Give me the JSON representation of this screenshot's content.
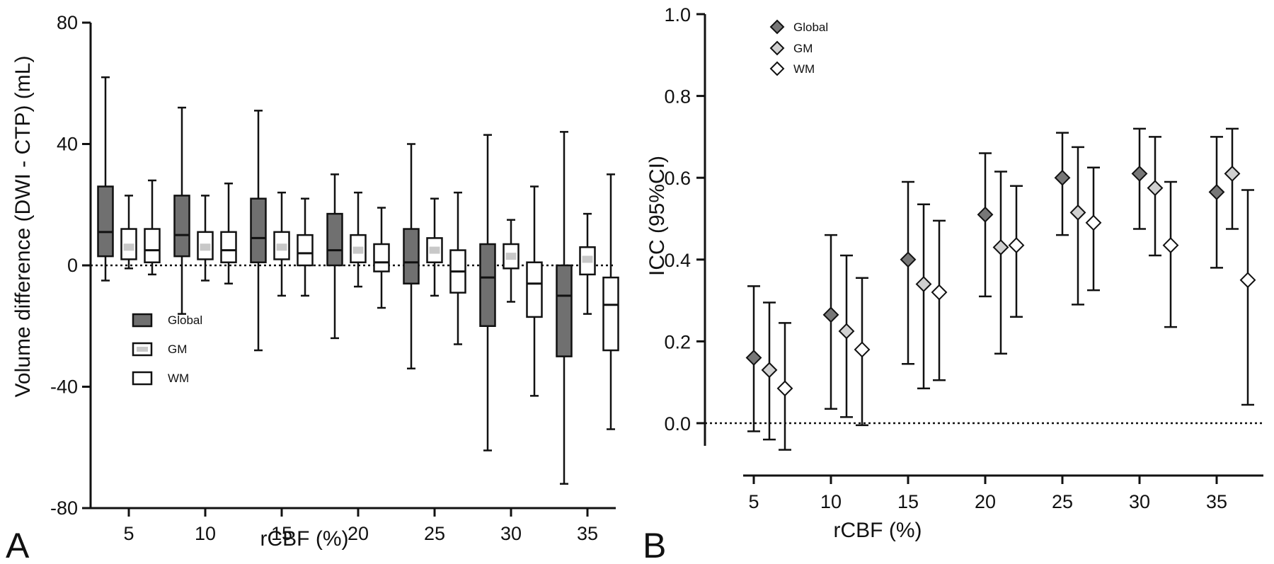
{
  "chart_data": [
    {
      "type": "boxplot",
      "panel_label": "A",
      "xlabel": "rCBF (%)",
      "ylabel": "Volume difference (DWI - CTP) (mL)",
      "ylim": [
        -80,
        80
      ],
      "yticks": [
        80,
        40,
        0,
        -40,
        -80
      ],
      "ytick_labels": [
        "80",
        "40",
        "0",
        "-40",
        "-80"
      ],
      "categories": [
        "5",
        "10",
        "15",
        "20",
        "25",
        "30",
        "35"
      ],
      "reference_line": 0,
      "legend_position": "bottom-left",
      "series": [
        {
          "name": "Global",
          "color": "#707070",
          "median_color": "#111111",
          "boxes": [
            {
              "min": -5,
              "q1": 3,
              "median": 11,
              "q3": 26,
              "max": 62
            },
            {
              "min": -16,
              "q1": 3,
              "median": 10,
              "q3": 23,
              "max": 52
            },
            {
              "min": -28,
              "q1": 1,
              "median": 9,
              "q3": 22,
              "max": 51
            },
            {
              "min": -24,
              "q1": 0,
              "median": 5,
              "q3": 17,
              "max": 30
            },
            {
              "min": -34,
              "q1": -6,
              "median": 1,
              "q3": 12,
              "max": 40
            },
            {
              "min": -61,
              "q1": -20,
              "median": -4,
              "q3": 7,
              "max": 43
            },
            {
              "min": -72,
              "q1": -30,
              "median": -10,
              "q3": 0,
              "max": 44
            }
          ]
        },
        {
          "name": "GM",
          "color": "#ffffff",
          "median_color": "#c8c8c8",
          "boxes": [
            {
              "min": -1,
              "q1": 2,
              "median": 6,
              "q3": 12,
              "max": 23
            },
            {
              "min": -5,
              "q1": 2,
              "median": 6,
              "q3": 11,
              "max": 23
            },
            {
              "min": -10,
              "q1": 2,
              "median": 6,
              "q3": 11,
              "max": 24
            },
            {
              "min": -7,
              "q1": 1,
              "median": 5,
              "q3": 10,
              "max": 24
            },
            {
              "min": -10,
              "q1": 1,
              "median": 5,
              "q3": 9,
              "max": 22
            },
            {
              "min": -12,
              "q1": -1,
              "median": 3,
              "q3": 7,
              "max": 15
            },
            {
              "min": -16,
              "q1": -3,
              "median": 2,
              "q3": 6,
              "max": 17
            }
          ]
        },
        {
          "name": "WM",
          "color": "#ffffff",
          "median_color": "#111111",
          "boxes": [
            {
              "min": -3,
              "q1": 1,
              "median": 5,
              "q3": 12,
              "max": 28
            },
            {
              "min": -6,
              "q1": 1,
              "median": 5,
              "q3": 11,
              "max": 27
            },
            {
              "min": -10,
              "q1": 0,
              "median": 4,
              "q3": 10,
              "max": 22
            },
            {
              "min": -14,
              "q1": -2,
              "median": 1,
              "q3": 7,
              "max": 19
            },
            {
              "min": -26,
              "q1": -9,
              "median": -2,
              "q3": 5,
              "max": 24
            },
            {
              "min": -43,
              "q1": -17,
              "median": -6,
              "q3": 1,
              "max": 26
            },
            {
              "min": -54,
              "q1": -28,
              "median": -13,
              "q3": -4,
              "max": 30
            }
          ]
        }
      ]
    },
    {
      "type": "scatter-errorbar",
      "panel_label": "B",
      "xlabel": "rCBF (%)",
      "ylabel": "ICC (95%CI)",
      "ylim": [
        -0.05,
        1.0
      ],
      "yticks": [
        1.0,
        0.8,
        0.6,
        0.4,
        0.2,
        0.0
      ],
      "ytick_labels": [
        "1.0",
        "0.8",
        "0.6",
        "0.4",
        "0.2",
        "0.0"
      ],
      "categories": [
        "5",
        "10",
        "15",
        "20",
        "25",
        "30",
        "35"
      ],
      "reference_line": 0,
      "legend_position": "top-left",
      "series": [
        {
          "name": "Global",
          "color": "#777777",
          "points": [
            {
              "y": 0.16,
              "lo": -0.02,
              "hi": 0.335
            },
            {
              "y": 0.265,
              "lo": 0.035,
              "hi": 0.46
            },
            {
              "y": 0.4,
              "lo": 0.145,
              "hi": 0.59
            },
            {
              "y": 0.51,
              "lo": 0.31,
              "hi": 0.66
            },
            {
              "y": 0.6,
              "lo": 0.46,
              "hi": 0.71
            },
            {
              "y": 0.61,
              "lo": 0.475,
              "hi": 0.72
            },
            {
              "y": 0.565,
              "lo": 0.38,
              "hi": 0.7
            }
          ]
        },
        {
          "name": "GM",
          "color": "#d0d0d0",
          "points": [
            {
              "y": 0.13,
              "lo": -0.04,
              "hi": 0.295
            },
            {
              "y": 0.225,
              "lo": 0.015,
              "hi": 0.41
            },
            {
              "y": 0.34,
              "lo": 0.085,
              "hi": 0.535
            },
            {
              "y": 0.43,
              "lo": 0.17,
              "hi": 0.615
            },
            {
              "y": 0.515,
              "lo": 0.29,
              "hi": 0.675
            },
            {
              "y": 0.575,
              "lo": 0.41,
              "hi": 0.7
            },
            {
              "y": 0.61,
              "lo": 0.475,
              "hi": 0.72
            }
          ]
        },
        {
          "name": "WM",
          "color": "#ffffff",
          "points": [
            {
              "y": 0.085,
              "lo": -0.065,
              "hi": 0.245
            },
            {
              "y": 0.18,
              "lo": -0.005,
              "hi": 0.355
            },
            {
              "y": 0.32,
              "lo": 0.105,
              "hi": 0.495
            },
            {
              "y": 0.435,
              "lo": 0.26,
              "hi": 0.58
            },
            {
              "y": 0.49,
              "lo": 0.325,
              "hi": 0.625
            },
            {
              "y": 0.435,
              "lo": 0.235,
              "hi": 0.59
            },
            {
              "y": 0.35,
              "lo": 0.045,
              "hi": 0.57
            }
          ]
        }
      ]
    }
  ]
}
